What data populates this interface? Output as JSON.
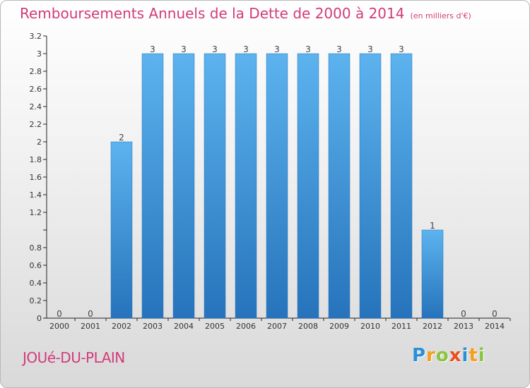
{
  "header": {
    "title": "Remboursements Annuels de la Dette de 2000 à 2014",
    "unit": "(en milliers d'€)"
  },
  "footer": {
    "commune": "JOUé-DU-PLAIN",
    "logo": {
      "letters": [
        "P",
        "r",
        "o",
        "x",
        "i",
        "t",
        "i"
      ],
      "colors": [
        "#2b8fd6",
        "#f2a01c",
        "#8bc53f",
        "#e94e1b",
        "#2b8fd6",
        "#f2a01c",
        "#8bc53f"
      ]
    }
  },
  "chart_data": {
    "type": "bar",
    "categories": [
      "2000",
      "2001",
      "2002",
      "2003",
      "2004",
      "2005",
      "2006",
      "2007",
      "2008",
      "2009",
      "2010",
      "2011",
      "2012",
      "2013",
      "2014"
    ],
    "values": [
      0,
      0,
      2,
      3,
      3,
      3,
      3,
      3,
      3,
      3,
      3,
      3,
      1,
      0,
      0
    ],
    "data_labels": [
      "0",
      "0",
      "2",
      "3",
      "3",
      "3",
      "3",
      "3",
      "3",
      "3",
      "3",
      "3",
      "1",
      "0",
      "0"
    ],
    "yticks": [
      0,
      0.2,
      0.4,
      0.6,
      0.8,
      1,
      1.2,
      1.4,
      1.6,
      1.8,
      2,
      2.2,
      2.4,
      2.6,
      2.8,
      3,
      3.2
    ],
    "ytick_labels": [
      "0",
      "0.2",
      "0.4",
      "0.6",
      "0.8",
      "",
      "1.2",
      "1.4",
      "1.6",
      "1.8",
      "2",
      "2.2",
      "2.4",
      "2.6",
      "2.8",
      "3",
      "3.2"
    ],
    "ylim": [
      0,
      3.2
    ],
    "grid": false,
    "bar_color": "#3a8fd6",
    "bar_color_light": "#5cb3ee",
    "bar_color_dark": "#2673bb",
    "title_color": "#d23b7a"
  }
}
